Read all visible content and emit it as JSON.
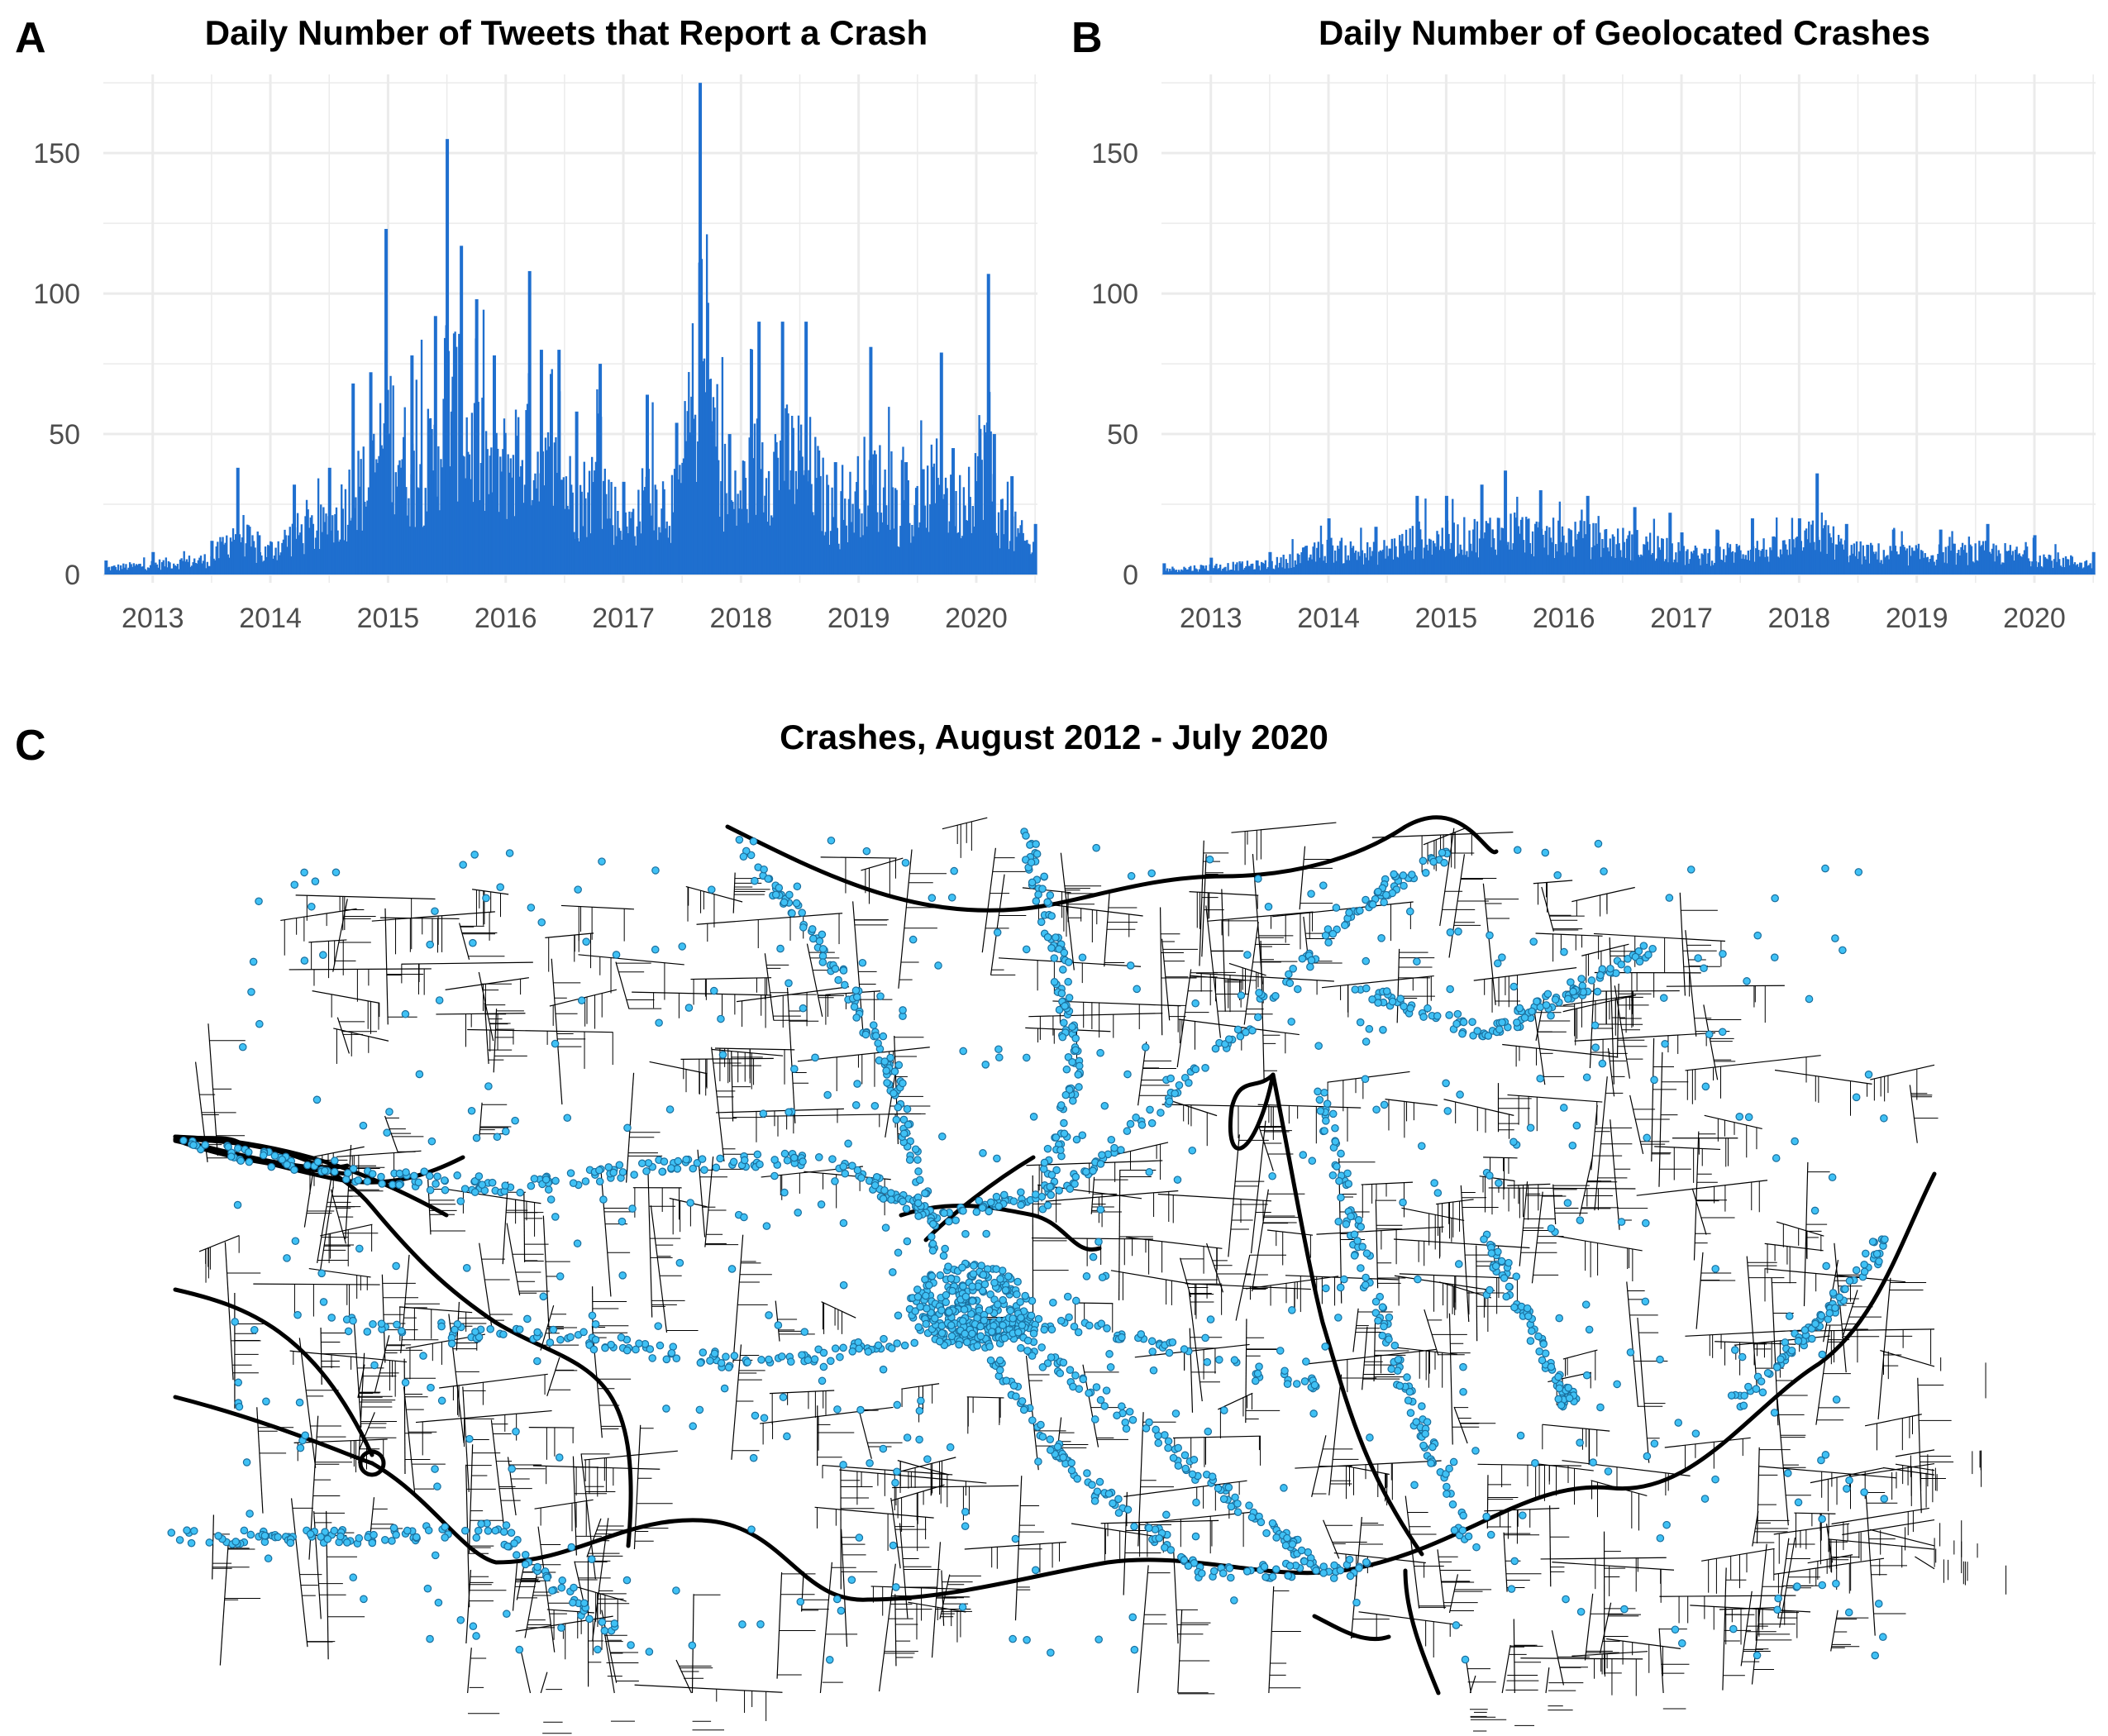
{
  "panels": {
    "a": {
      "letter": "A"
    },
    "b": {
      "letter": "B"
    },
    "c": {
      "letter": "C",
      "title": "Crashes, August 2012 - July 2020"
    }
  },
  "colors": {
    "bar": "#1f6fcf",
    "grid": "#ebebeb",
    "point_fill": "#3fc1f5",
    "point_stroke": "#1a6f9e",
    "road": "#000000"
  },
  "chart_data": [
    {
      "type": "bar",
      "title": "Daily Number of Tweets that Report a Crash",
      "xlabel": "",
      "ylabel": "",
      "x_range": [
        2012.58,
        2020.52
      ],
      "ylim": [
        0,
        178
      ],
      "y_ticks": [
        0,
        50,
        100,
        150
      ],
      "x_ticks": [
        "2013",
        "2014",
        "2015",
        "2016",
        "2017",
        "2018",
        "2019",
        "2020"
      ],
      "grid": true,
      "series": [
        {
          "x": [
            2012.6,
            2013.0,
            2013.5,
            2013.72,
            2013.9,
            2014.2,
            2014.5,
            2014.7,
            2014.85,
            2014.98,
            2015.2,
            2015.4,
            2015.5,
            2015.62,
            2015.75,
            2015.9,
            2016.2,
            2016.3,
            2016.45,
            2016.6,
            2016.8,
            2017.0,
            2017.2,
            2017.45,
            2017.65,
            2017.9,
            2018.15,
            2018.35,
            2018.55,
            2018.8,
            2019.1,
            2019.4,
            2019.7,
            2019.8,
            2020.1,
            2020.15,
            2020.3,
            2020.5
          ],
          "values": [
            5,
            8,
            12,
            38,
            14,
            32,
            38,
            68,
            72,
            123,
            78,
            92,
            155,
            117,
            98,
            78,
            108,
            80,
            80,
            58,
            75,
            33,
            64,
            54,
            175,
            50,
            90,
            90,
            90,
            40,
            81,
            40,
            79,
            45,
            107,
            50,
            35,
            18
          ]
        }
      ]
    },
    {
      "type": "bar",
      "title": "Daily Number of Geolocated Crashes",
      "xlabel": "",
      "ylabel": "",
      "x_range": [
        2012.58,
        2020.52
      ],
      "ylim": [
        0,
        178
      ],
      "y_ticks": [
        0,
        50,
        100,
        150
      ],
      "x_ticks": [
        "2013",
        "2014",
        "2015",
        "2016",
        "2017",
        "2018",
        "2019",
        "2020"
      ],
      "grid": true,
      "series": [
        {
          "x": [
            2012.6,
            2013.0,
            2013.5,
            2014.0,
            2014.4,
            2014.75,
            2015.0,
            2015.3,
            2015.5,
            2015.8,
            2016.2,
            2016.6,
            2016.9,
            2017.0,
            2017.3,
            2017.6,
            2018.0,
            2018.15,
            2018.4,
            2018.8,
            2019.2,
            2019.6,
            2020.0,
            2020.5
          ],
          "values": [
            4,
            6,
            8,
            20,
            17,
            28,
            28,
            32,
            37,
            30,
            28,
            24,
            22,
            15,
            16,
            20,
            20,
            36,
            18,
            16,
            16,
            18,
            14,
            8
          ]
        }
      ]
    }
  ]
}
